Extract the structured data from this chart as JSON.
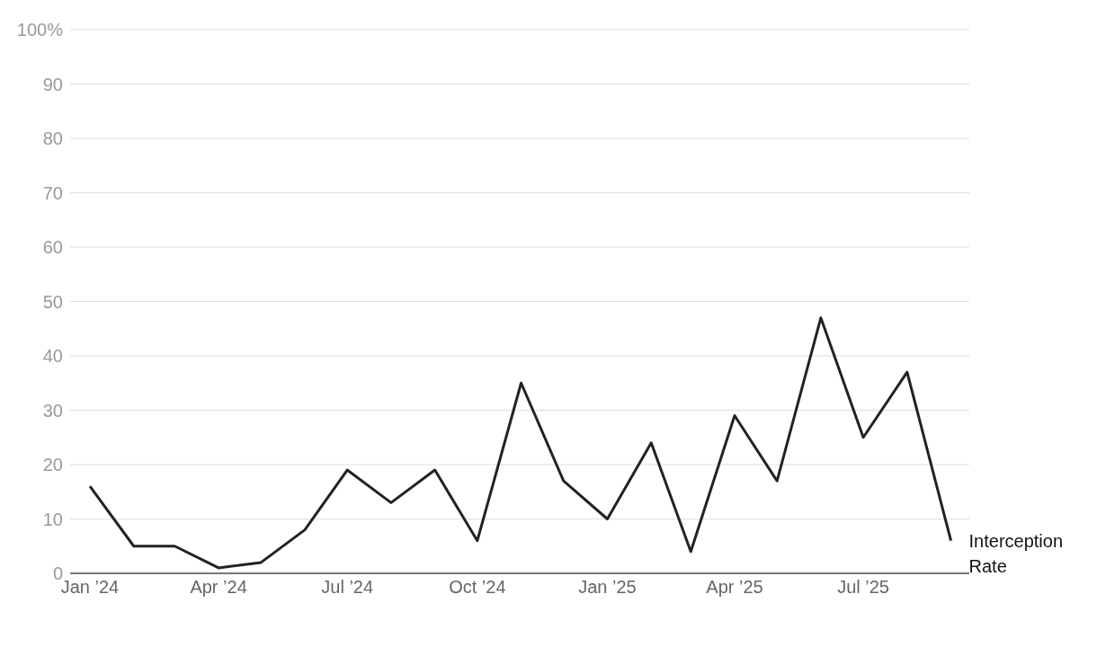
{
  "chart_data": {
    "type": "line",
    "x": [
      "2024-01",
      "2024-02",
      "2024-03",
      "2024-04",
      "2024-05",
      "2024-06",
      "2024-07",
      "2024-08",
      "2024-09",
      "2024-10",
      "2024-11",
      "2024-12",
      "2025-01",
      "2025-02",
      "2025-03",
      "2025-04",
      "2025-05",
      "2025-06",
      "2025-07",
      "2025-08",
      "2025-09"
    ],
    "series": [
      {
        "name": "Interception Rate",
        "color": "#222222",
        "values": [
          16,
          5,
          5,
          1,
          2,
          8,
          19,
          13,
          19,
          6,
          35,
          17,
          10,
          24,
          4,
          29,
          17,
          47,
          25,
          37,
          6
        ]
      }
    ],
    "xlim": [
      "2023-12-18",
      "2025-09-14"
    ],
    "xticks": [
      {
        "value": "2024-01",
        "label": "Jan ’24"
      },
      {
        "value": "2024-04",
        "label": "Apr ’24"
      },
      {
        "value": "2024-07",
        "label": "Jul ’24"
      },
      {
        "value": "2024-10",
        "label": "Oct ’24"
      },
      {
        "value": "2025-01",
        "label": "Jan ’25"
      },
      {
        "value": "2025-04",
        "label": "Apr ’25"
      },
      {
        "value": "2025-07",
        "label": "Jul ’25"
      }
    ],
    "ylim": [
      0,
      100
    ],
    "yticks": [
      0,
      10,
      20,
      30,
      40,
      50,
      60,
      70,
      80,
      90,
      {
        "value": 100,
        "label": "100%"
      }
    ],
    "grid": "y",
    "marker": "none",
    "line_style": "solid"
  }
}
